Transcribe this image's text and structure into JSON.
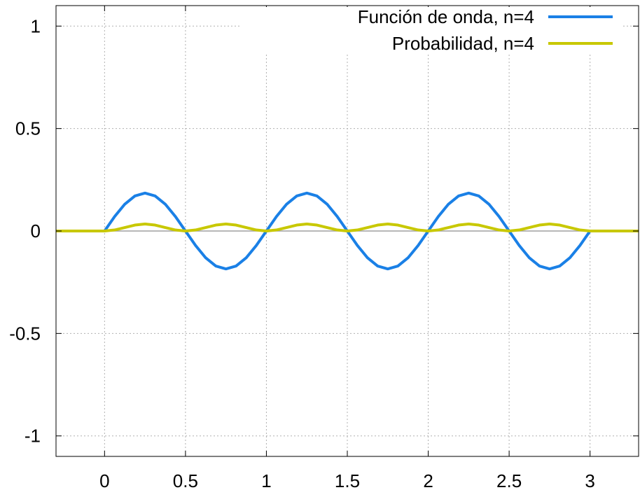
{
  "chart_data": {
    "type": "line",
    "title": "",
    "xlabel": "",
    "ylabel": "",
    "xlim": [
      -0.3,
      3.3
    ],
    "ylim": [
      -1.1,
      1.1
    ],
    "grid": true,
    "legend_position": "top-right",
    "x_ticks": [
      "0",
      "0.5",
      "1",
      "1.5",
      "2",
      "2.5",
      "3"
    ],
    "x_tick_values": [
      0,
      0.5,
      1,
      1.5,
      2,
      2.5,
      3
    ],
    "y_ticks": [
      "1",
      "0.5",
      "0",
      "-0.5",
      "-1"
    ],
    "y_tick_values": [
      1,
      0.5,
      0,
      -0.5,
      -1
    ],
    "series": [
      {
        "name": "Función de onda, n=4",
        "color": "#1a80e6",
        "x": [
          -0.3,
          0,
          0.0625,
          0.125,
          0.1875,
          0.25,
          0.3125,
          0.375,
          0.4375,
          0.5,
          0.5625,
          0.625,
          0.6875,
          0.75,
          0.8125,
          0.875,
          0.9375,
          1.0,
          1.0625,
          1.125,
          1.1875,
          1.25,
          1.3125,
          1.375,
          1.4375,
          1.5,
          1.5625,
          1.625,
          1.6875,
          1.75,
          1.8125,
          1.875,
          1.9375,
          2.0,
          2.0625,
          2.125,
          2.1875,
          2.25,
          2.3125,
          2.375,
          2.4375,
          2.5,
          2.5625,
          2.625,
          2.6875,
          2.75,
          2.8125,
          2.875,
          2.9375,
          3.0,
          3.3
        ],
        "y": [
          0,
          0,
          0.071,
          0.131,
          0.171,
          0.185,
          0.171,
          0.131,
          0.071,
          0,
          -0.071,
          -0.131,
          -0.171,
          -0.185,
          -0.171,
          -0.131,
          -0.071,
          0,
          0.071,
          0.131,
          0.171,
          0.185,
          0.171,
          0.131,
          0.071,
          0,
          -0.071,
          -0.131,
          -0.171,
          -0.185,
          -0.171,
          -0.131,
          -0.071,
          0,
          0.071,
          0.131,
          0.171,
          0.185,
          0.171,
          0.131,
          0.071,
          0,
          -0.071,
          -0.131,
          -0.171,
          -0.185,
          -0.171,
          -0.131,
          -0.071,
          0,
          0
        ]
      },
      {
        "name": "Probabilidad, n=4",
        "color": "#c8c800",
        "x": [
          -0.3,
          0,
          0.0625,
          0.125,
          0.1875,
          0.25,
          0.3125,
          0.375,
          0.4375,
          0.5,
          0.5625,
          0.625,
          0.6875,
          0.75,
          0.8125,
          0.875,
          0.9375,
          1.0,
          1.0625,
          1.125,
          1.1875,
          1.25,
          1.3125,
          1.375,
          1.4375,
          1.5,
          1.5625,
          1.625,
          1.6875,
          1.75,
          1.8125,
          1.875,
          1.9375,
          2.0,
          2.0625,
          2.125,
          2.1875,
          2.25,
          2.3125,
          2.375,
          2.4375,
          2.5,
          2.5625,
          2.625,
          2.6875,
          2.75,
          2.8125,
          2.875,
          2.9375,
          3.0,
          3.3
        ],
        "y": [
          0,
          0,
          0.005,
          0.017,
          0.029,
          0.034,
          0.029,
          0.017,
          0.005,
          0,
          0.005,
          0.017,
          0.029,
          0.034,
          0.029,
          0.017,
          0.005,
          0,
          0.005,
          0.017,
          0.029,
          0.034,
          0.029,
          0.017,
          0.005,
          0,
          0.005,
          0.017,
          0.029,
          0.034,
          0.029,
          0.017,
          0.005,
          0,
          0.005,
          0.017,
          0.029,
          0.034,
          0.029,
          0.017,
          0.005,
          0,
          0.005,
          0.017,
          0.029,
          0.034,
          0.029,
          0.017,
          0.005,
          0,
          0
        ]
      }
    ]
  }
}
